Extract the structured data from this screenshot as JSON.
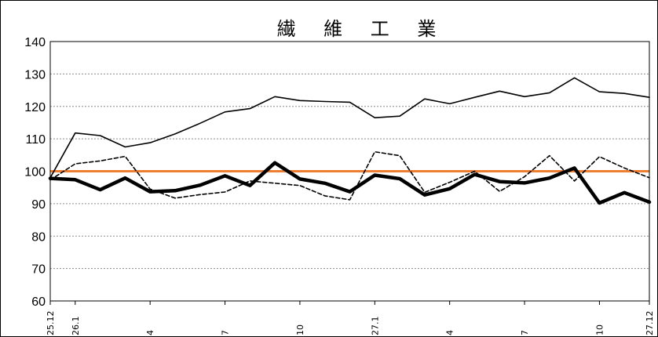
{
  "chart_data": {
    "type": "line",
    "title": "繊 維 工 業",
    "xlabel": "",
    "ylabel": "",
    "ylim": [
      60,
      140
    ],
    "yticks": [
      60,
      70,
      80,
      90,
      100,
      110,
      120,
      130,
      140
    ],
    "grid": true,
    "x_tick_labels": [
      {
        "index": 0,
        "label": "25.12"
      },
      {
        "index": 1,
        "label": "26.1"
      },
      {
        "index": 4,
        "label": "4"
      },
      {
        "index": 7,
        "label": "7"
      },
      {
        "index": 10,
        "label": "10"
      },
      {
        "index": 13,
        "label": "27.1"
      },
      {
        "index": 16,
        "label": "4"
      },
      {
        "index": 19,
        "label": "7"
      },
      {
        "index": 22,
        "label": "10"
      },
      {
        "index": 24,
        "label": "27.12"
      }
    ],
    "reference_line": {
      "value": 100,
      "color": "#ED7D31"
    },
    "series": [
      {
        "style": "thin-solid",
        "color": "#000000",
        "values": [
          98,
          111.8,
          111,
          107.5,
          108.8,
          111.5,
          114.8,
          118.3,
          119.3,
          123,
          121.8,
          121.5,
          121.3,
          116.5,
          117,
          122.3,
          120.8,
          122.8,
          124.7,
          123,
          124.2,
          128.8,
          124.5,
          124,
          122.8
        ]
      },
      {
        "style": "dashed",
        "color": "#000000",
        "values": [
          97.3,
          102.3,
          103.2,
          104.6,
          94.5,
          91.7,
          92.8,
          93.6,
          97,
          96.3,
          95.6,
          92.4,
          91.2,
          106,
          104.8,
          93.5,
          96.6,
          100,
          93.8,
          98.3,
          104.8,
          97,
          104.5,
          101,
          98
        ]
      },
      {
        "style": "thick-solid",
        "color": "#000000",
        "values": [
          97.8,
          97.4,
          94.3,
          97.9,
          93.7,
          94,
          95.7,
          98.6,
          95.6,
          102.6,
          97.6,
          96.3,
          93.7,
          98.8,
          97.7,
          92.7,
          94.6,
          99,
          96.8,
          96.4,
          97.9,
          101,
          90.2,
          93.4,
          90.5
        ]
      }
    ]
  }
}
